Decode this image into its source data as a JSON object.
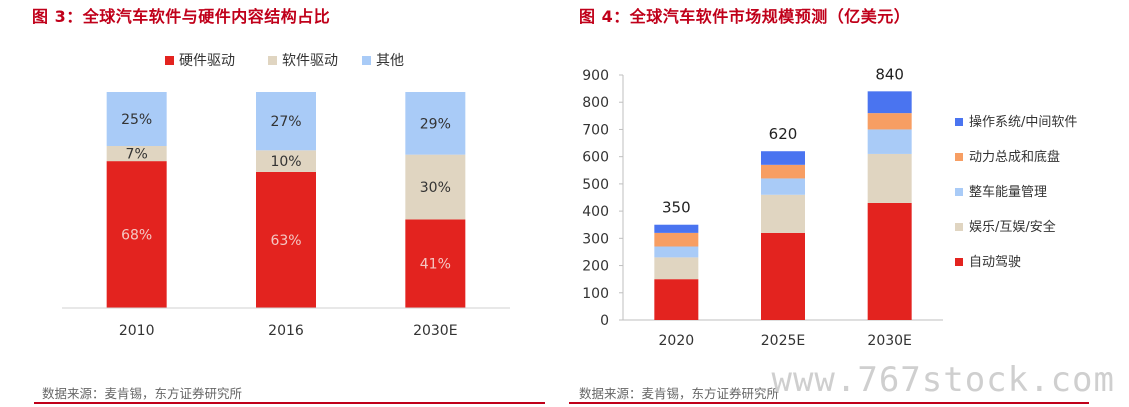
{
  "colors": {
    "accent": "#c0001a",
    "red": "#e3231f",
    "beige": "#e0d5c1",
    "lightblue": "#a9cbf7",
    "orange": "#f79e63",
    "blue": "#4a74f0"
  },
  "fig3": {
    "title": "图 3：全球汽车软件与硬件内容结构占比",
    "source": "数据来源：麦肯锡，东方证券研究所",
    "chart_data": {
      "type": "bar",
      "stacked": "percent",
      "categories": [
        "2010",
        "2016",
        "2030E"
      ],
      "series": [
        {
          "name": "硬件驱动",
          "color": "#e3231f",
          "values": [
            68,
            63,
            41
          ],
          "labels": [
            "68%",
            "63%",
            "41%"
          ]
        },
        {
          "name": "软件驱动",
          "color": "#e0d5c1",
          "values": [
            7,
            10,
            30
          ],
          "labels": [
            "7%",
            "10%",
            "30%"
          ]
        },
        {
          "name": "其他",
          "color": "#a9cbf7",
          "values": [
            25,
            27,
            29
          ],
          "labels": [
            "25%",
            "27%",
            "29%"
          ]
        }
      ],
      "ylim": [
        0,
        100
      ],
      "legend": "top",
      "grid": false
    }
  },
  "fig4": {
    "title": "图 4：全球汽车软件市场规模预测（亿美元）",
    "source": "数据来源：麦肯锡，东方证券研究所",
    "chart_data": {
      "type": "bar",
      "stacked": "absolute",
      "categories": [
        "2020",
        "2025E",
        "2030E"
      ],
      "totals": [
        350,
        620,
        840
      ],
      "total_labels": [
        "350",
        "620",
        "840"
      ],
      "series": [
        {
          "name": "自动驾驶",
          "color": "#e3231f",
          "values": [
            150,
            320,
            430
          ]
        },
        {
          "name": "娱乐/互娱/安全",
          "color": "#e0d5c1",
          "values": [
            80,
            140,
            180
          ]
        },
        {
          "name": "整车能量管理",
          "color": "#a9cbf7",
          "values": [
            40,
            60,
            90
          ]
        },
        {
          "name": "动力总成和底盘",
          "color": "#f79e63",
          "values": [
            50,
            50,
            60
          ]
        },
        {
          "name": "操作系统/中间软件",
          "color": "#4a74f0",
          "values": [
            30,
            50,
            80
          ]
        }
      ],
      "ylim": [
        0,
        900
      ],
      "yticks": [
        0,
        100,
        200,
        300,
        400,
        500,
        600,
        700,
        800,
        900
      ],
      "ytick_labels": [
        "0",
        "100",
        "200",
        "300",
        "400",
        "500",
        "600",
        "700",
        "800",
        "900"
      ],
      "legend": "right",
      "grid": false
    }
  },
  "watermark": "www.767stock.com"
}
